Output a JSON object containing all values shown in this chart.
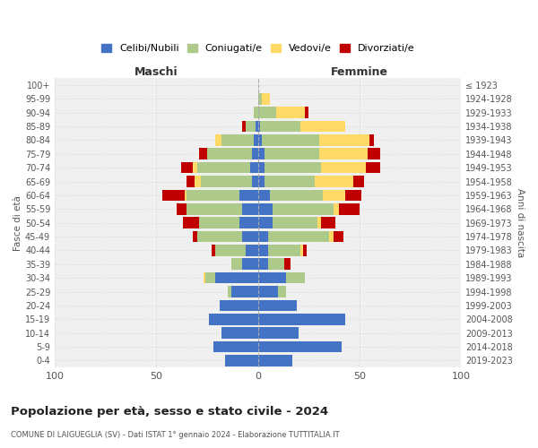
{
  "age_groups": [
    "0-4",
    "5-9",
    "10-14",
    "15-19",
    "20-24",
    "25-29",
    "30-34",
    "35-39",
    "40-44",
    "45-49",
    "50-54",
    "55-59",
    "60-64",
    "65-69",
    "70-74",
    "75-79",
    "80-84",
    "85-89",
    "90-94",
    "95-99",
    "100+"
  ],
  "birth_years": [
    "2019-2023",
    "2014-2018",
    "2009-2013",
    "2004-2008",
    "1999-2003",
    "1994-1998",
    "1989-1993",
    "1984-1988",
    "1979-1983",
    "1974-1978",
    "1969-1973",
    "1964-1968",
    "1959-1963",
    "1954-1958",
    "1949-1953",
    "1944-1948",
    "1939-1943",
    "1934-1938",
    "1929-1933",
    "1924-1928",
    "≤ 1923"
  ],
  "males": {
    "celibi": [
      16,
      22,
      18,
      24,
      19,
      13,
      21,
      8,
      6,
      8,
      9,
      8,
      9,
      3,
      4,
      3,
      2,
      1,
      0,
      0,
      0
    ],
    "coniugati": [
      0,
      0,
      0,
      0,
      0,
      2,
      5,
      5,
      15,
      22,
      20,
      27,
      26,
      25,
      26,
      22,
      16,
      5,
      2,
      0,
      0
    ],
    "vedovi": [
      0,
      0,
      0,
      0,
      0,
      0,
      1,
      0,
      0,
      0,
      0,
      0,
      1,
      3,
      2,
      0,
      3,
      0,
      0,
      0,
      0
    ],
    "divorziati": [
      0,
      0,
      0,
      0,
      0,
      0,
      0,
      0,
      2,
      2,
      8,
      5,
      11,
      4,
      6,
      4,
      0,
      2,
      0,
      0,
      0
    ]
  },
  "females": {
    "nubili": [
      17,
      41,
      20,
      43,
      19,
      10,
      14,
      5,
      5,
      5,
      7,
      7,
      6,
      3,
      3,
      3,
      2,
      1,
      0,
      0,
      0
    ],
    "coniugate": [
      0,
      0,
      0,
      0,
      0,
      4,
      9,
      8,
      16,
      30,
      22,
      30,
      26,
      25,
      28,
      27,
      28,
      20,
      9,
      2,
      0
    ],
    "vedove": [
      0,
      0,
      0,
      0,
      0,
      0,
      0,
      0,
      1,
      2,
      2,
      3,
      11,
      19,
      22,
      24,
      25,
      22,
      14,
      4,
      0
    ],
    "divorziate": [
      0,
      0,
      0,
      0,
      0,
      0,
      0,
      3,
      2,
      5,
      7,
      10,
      8,
      5,
      7,
      6,
      2,
      0,
      2,
      0,
      0
    ]
  },
  "colors": {
    "celibi_nubili": "#4472C4",
    "coniugati": "#AECA8A",
    "vedovi": "#FFD966",
    "divorziati": "#C00000"
  },
  "xlim": 100,
  "title": "Popolazione per età, sesso e stato civile - 2024",
  "subtitle": "COMUNE DI LAIGUEGLIA (SV) - Dati ISTAT 1° gennaio 2024 - Elaborazione TUTTITALIA.IT",
  "xlabel_left": "Maschi",
  "xlabel_right": "Femmine",
  "ylabel_left": "Fasce di età",
  "ylabel_right": "Anni di nascita",
  "legend_labels": [
    "Celibi/Nubili",
    "Coniugati/e",
    "Vedovi/e",
    "Divorziati/e"
  ],
  "background_color": "#ffffff",
  "grid_color": "#cccccc"
}
